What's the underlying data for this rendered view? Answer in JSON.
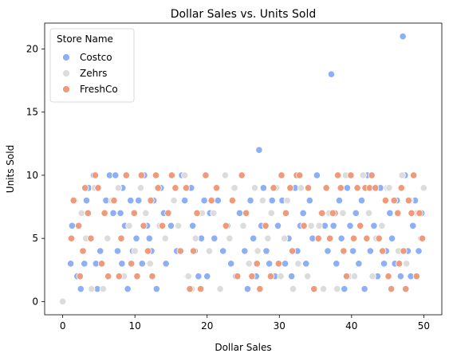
{
  "chart_data": {
    "type": "scatter",
    "title": "Dollar Sales vs. Units Sold",
    "xlabel": "Dollar Sales",
    "ylabel": "Units Sold",
    "xlim": [
      -2.5,
      52.5
    ],
    "ylim": [
      -1.05,
      22.05
    ],
    "xticks": [
      0,
      10,
      20,
      30,
      40,
      50
    ],
    "yticks": [
      0,
      5,
      10,
      15,
      20
    ],
    "grid": false,
    "legend": {
      "title": "Store Name",
      "placement": "top-left"
    },
    "series": [
      {
        "name": "Costco",
        "color": "#8caff8",
        "points": [
          [
            1.3,
            6
          ],
          [
            1.1,
            3
          ],
          [
            2,
            2
          ],
          [
            2.5,
            1
          ],
          [
            3,
            3
          ],
          [
            3.3,
            8
          ],
          [
            3.6,
            9
          ],
          [
            4.3,
            10
          ],
          [
            4.6,
            3
          ],
          [
            4.8,
            1
          ],
          [
            5.2,
            4
          ],
          [
            6,
            8
          ],
          [
            6.5,
            10
          ],
          [
            7,
            7
          ],
          [
            7.3,
            10
          ],
          [
            7.6,
            4
          ],
          [
            8,
            7
          ],
          [
            8.3,
            9
          ],
          [
            8.6,
            6
          ],
          [
            8.2,
            3
          ],
          [
            8.1,
            2
          ],
          [
            9,
            1
          ],
          [
            9.4,
            8
          ],
          [
            9.7,
            4
          ],
          [
            10.2,
            5
          ],
          [
            10.5,
            8
          ],
          [
            11,
            3
          ],
          [
            11.3,
            10
          ],
          [
            11.7,
            6
          ],
          [
            12,
            5
          ],
          [
            12.3,
            4
          ],
          [
            12.6,
            8
          ],
          [
            13,
            1
          ],
          [
            13.6,
            9
          ],
          [
            14,
            7
          ],
          [
            14.3,
            3
          ],
          [
            15,
            6
          ],
          [
            15.8,
            4
          ],
          [
            16.5,
            10
          ],
          [
            16.9,
            8
          ],
          [
            17.3,
            2
          ],
          [
            17.8,
            9
          ],
          [
            18,
            6
          ],
          [
            18.3,
            4
          ],
          [
            18.8,
            2
          ],
          [
            19.2,
            5
          ],
          [
            19.6,
            8
          ],
          [
            20,
            2
          ],
          [
            20.4,
            7
          ],
          [
            21,
            5
          ],
          [
            21.5,
            8
          ],
          [
            22.2,
            4
          ],
          [
            22.8,
            6
          ],
          [
            23.3,
            3
          ],
          [
            23.7,
            9
          ],
          [
            24,
            2
          ],
          [
            24.5,
            7
          ],
          [
            25.2,
            4
          ],
          [
            25.6,
            1
          ],
          [
            26,
            8
          ],
          [
            26.4,
            5
          ],
          [
            26.8,
            2
          ],
          [
            27.2,
            12
          ],
          [
            27.5,
            6
          ],
          [
            27.8,
            9
          ],
          [
            28.2,
            4
          ],
          [
            28.6,
            3
          ],
          [
            29,
            8
          ],
          [
            29.4,
            2
          ],
          [
            29.8,
            6
          ],
          [
            30.4,
            8
          ],
          [
            30.8,
            3
          ],
          [
            31.3,
            5
          ],
          [
            31.7,
            2
          ],
          [
            32.2,
            9
          ],
          [
            32.5,
            4
          ],
          [
            32.9,
            6
          ],
          [
            33.3,
            7
          ],
          [
            33.7,
            3
          ],
          [
            34.2,
            8
          ],
          [
            34.6,
            5
          ],
          [
            35.2,
            10
          ],
          [
            35.8,
            7
          ],
          [
            36.3,
            6
          ],
          [
            36.7,
            4
          ],
          [
            37.2,
            18
          ],
          [
            37.5,
            6
          ],
          [
            37.9,
            3
          ],
          [
            38.3,
            8
          ],
          [
            38.6,
            5
          ],
          [
            39,
            1
          ],
          [
            39.4,
            9
          ],
          [
            39.8,
            6
          ],
          [
            40.2,
            4
          ],
          [
            40.6,
            7
          ],
          [
            41,
            3
          ],
          [
            41.4,
            8
          ],
          [
            41.8,
            1
          ],
          [
            42.2,
            10
          ],
          [
            42.6,
            4
          ],
          [
            43.1,
            6
          ],
          [
            43.6,
            2
          ],
          [
            44,
            9
          ],
          [
            44.5,
            3
          ],
          [
            44.8,
            4
          ],
          [
            45.3,
            7
          ],
          [
            45.6,
            5
          ],
          [
            46,
            3
          ],
          [
            46.3,
            8
          ],
          [
            46.8,
            2
          ],
          [
            47.1,
            21
          ],
          [
            47.4,
            10
          ],
          [
            47.8,
            4
          ],
          [
            48.2,
            2
          ],
          [
            48.5,
            6
          ],
          [
            48.8,
            8
          ],
          [
            49.3,
            4
          ],
          [
            49.7,
            7
          ]
        ]
      },
      {
        "name": "Zehrs",
        "color": "#dddcdc",
        "points": [
          [
            0,
            0
          ],
          [
            1.7,
            8
          ],
          [
            2.6,
            7
          ],
          [
            3.2,
            5
          ],
          [
            4,
            1
          ],
          [
            4.4,
            9
          ],
          [
            5.6,
            1
          ],
          [
            6.2,
            5
          ],
          [
            6.8,
            8
          ],
          [
            7.7,
            9
          ],
          [
            8.5,
            2
          ],
          [
            9.2,
            6
          ],
          [
            10,
            4
          ],
          [
            10.8,
            9
          ],
          [
            11.5,
            7
          ],
          [
            12.1,
            3
          ],
          [
            12.8,
            10
          ],
          [
            13.4,
            6
          ],
          [
            14.2,
            5
          ],
          [
            15.4,
            8
          ],
          [
            16,
            6
          ],
          [
            16.9,
            10
          ],
          [
            17.4,
            2
          ],
          [
            17.9,
            1
          ],
          [
            18.4,
            5
          ],
          [
            19.3,
            7
          ],
          [
            20.3,
            4
          ],
          [
            20.9,
            7
          ],
          [
            21.8,
            1
          ],
          [
            22.5,
            10
          ],
          [
            23.1,
            5
          ],
          [
            23.8,
            9
          ],
          [
            24.3,
            2
          ],
          [
            25,
            6
          ],
          [
            25.8,
            3
          ],
          [
            26.6,
            9
          ],
          [
            27,
            4
          ],
          [
            27.7,
            8
          ],
          [
            28.4,
            5
          ],
          [
            28.9,
            7
          ],
          [
            29.6,
            9
          ],
          [
            30.2,
            2
          ],
          [
            30.7,
            5
          ],
          [
            31.1,
            8
          ],
          [
            31.9,
            1
          ],
          [
            32.6,
            3
          ],
          [
            33,
            9
          ],
          [
            33.9,
            2
          ],
          [
            34.4,
            6
          ],
          [
            35.5,
            6
          ],
          [
            36.1,
            1
          ],
          [
            36.9,
            7
          ],
          [
            38,
            1
          ],
          [
            38.8,
            7
          ],
          [
            39.2,
            10
          ],
          [
            39.7,
            2
          ],
          [
            40.4,
            2
          ],
          [
            40.9,
            9
          ],
          [
            41.6,
            10
          ],
          [
            42.4,
            7
          ],
          [
            42.9,
            2
          ],
          [
            43.4,
            5
          ],
          [
            44.2,
            6
          ],
          [
            44.9,
            9
          ],
          [
            45.2,
            9
          ],
          [
            46.5,
            4
          ],
          [
            47,
            10
          ],
          [
            47.6,
            3
          ],
          [
            48.1,
            8
          ],
          [
            49,
            7
          ],
          [
            49.6,
            5
          ],
          [
            50,
            9
          ]
        ]
      },
      {
        "name": "FreshCo",
        "color": "#f09a7c",
        "points": [
          [
            1.5,
            8
          ],
          [
            1.2,
            5
          ],
          [
            2.2,
            6
          ],
          [
            2.4,
            2
          ],
          [
            2.8,
            4
          ],
          [
            3.1,
            9
          ],
          [
            3.5,
            7
          ],
          [
            3.9,
            5
          ],
          [
            4.5,
            10
          ],
          [
            4.9,
            9
          ],
          [
            5.4,
            3
          ],
          [
            5.8,
            7
          ],
          [
            6.3,
            2
          ],
          [
            7.1,
            8
          ],
          [
            7.8,
            2
          ],
          [
            8.1,
            5
          ],
          [
            8.8,
            10
          ],
          [
            9.5,
            3
          ],
          [
            9.9,
            7
          ],
          [
            10.3,
            2
          ],
          [
            10.9,
            10
          ],
          [
            11.2,
            6
          ],
          [
            11.8,
            4
          ],
          [
            12.2,
            8
          ],
          [
            12.4,
            2
          ],
          [
            12.9,
            10
          ],
          [
            13.2,
            9
          ],
          [
            13.8,
            6
          ],
          [
            14.6,
            7
          ],
          [
            15.1,
            10
          ],
          [
            15.6,
            9
          ],
          [
            16.3,
            4
          ],
          [
            17.1,
            9
          ],
          [
            17.6,
            1
          ],
          [
            18.1,
            4
          ],
          [
            18.6,
            7
          ],
          [
            19.1,
            1
          ],
          [
            19.8,
            10
          ],
          [
            20.6,
            8
          ],
          [
            21.3,
            9
          ],
          [
            22.6,
            6
          ],
          [
            23.5,
            8
          ],
          [
            24.2,
            2
          ],
          [
            24.8,
            10
          ],
          [
            25.4,
            7
          ],
          [
            26.2,
            2
          ],
          [
            26.9,
            3
          ],
          [
            27.3,
            1
          ],
          [
            28.1,
            6
          ],
          [
            28.8,
            2
          ],
          [
            29.2,
            9
          ],
          [
            29.9,
            3
          ],
          [
            30.3,
            10
          ],
          [
            30.9,
            7
          ],
          [
            31.5,
            9
          ],
          [
            31.8,
            4
          ],
          [
            32.4,
            10
          ],
          [
            32.8,
            10
          ],
          [
            33.4,
            6
          ],
          [
            34,
            9
          ],
          [
            34.8,
            1
          ],
          [
            35.4,
            5
          ],
          [
            35.9,
            7
          ],
          [
            36.5,
            9
          ],
          [
            37,
            5
          ],
          [
            37.7,
            7
          ],
          [
            38.1,
            10
          ],
          [
            38.5,
            9
          ],
          [
            38.9,
            4
          ],
          [
            39.3,
            2
          ],
          [
            39.9,
            10
          ],
          [
            40.3,
            5
          ],
          [
            40.8,
            9
          ],
          [
            41.2,
            6
          ],
          [
            41.9,
            9
          ],
          [
            42.1,
            5
          ],
          [
            42.5,
            9
          ],
          [
            42.8,
            10
          ],
          [
            43.3,
            9
          ],
          [
            43.8,
            5
          ],
          [
            44.3,
            4
          ],
          [
            44.7,
            8
          ],
          [
            45.1,
            2
          ],
          [
            45.5,
            1
          ],
          [
            45.9,
            8
          ],
          [
            46.4,
            7
          ],
          [
            46.9,
            9
          ],
          [
            47.2,
            4
          ],
          [
            47.5,
            1
          ],
          [
            47.9,
            8
          ],
          [
            48.3,
            7
          ],
          [
            48.6,
            10
          ],
          [
            49,
            2
          ],
          [
            49.4,
            7
          ],
          [
            49.8,
            5
          ],
          [
            46.6,
            3
          ],
          [
            37.4,
            7
          ]
        ]
      }
    ]
  }
}
